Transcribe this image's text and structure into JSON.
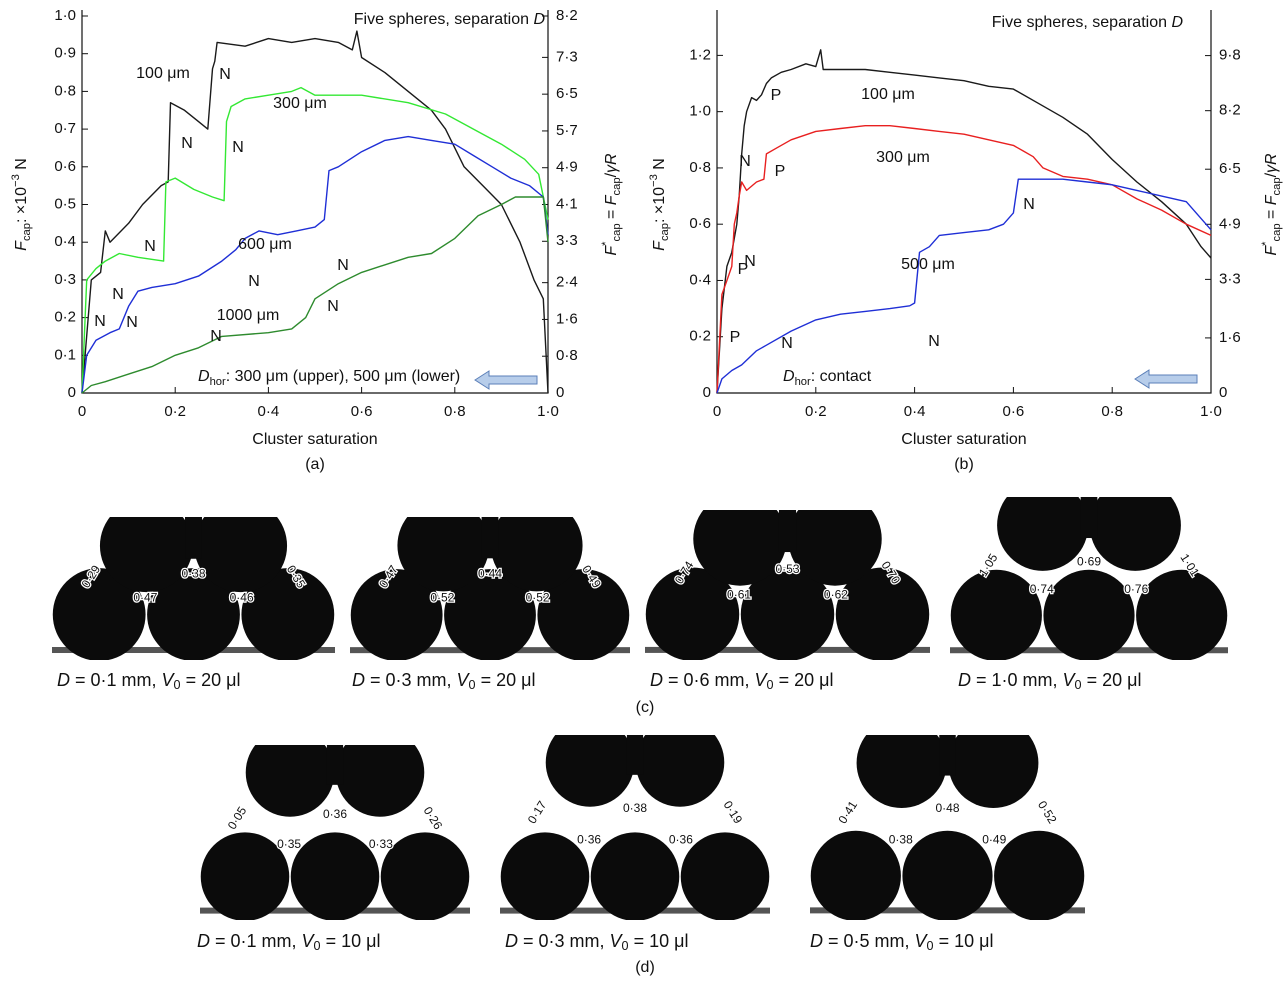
{
  "chart_data": [
    {
      "type": "line",
      "caption": "(a)",
      "xlabel": "Cluster saturation",
      "ylabel": [
        {
          "i": "F"
        },
        {
          "sub": "cap"
        },
        ": ×10",
        {
          "sup": "−3"
        },
        " N"
      ],
      "y2label": [
        {
          "i": "F"
        },
        {
          "sup": "*"
        },
        {
          "sub": "cap"
        },
        " = ",
        {
          "i": "F"
        },
        {
          "sub": "cap"
        },
        "/",
        {
          "i": "γR"
        }
      ],
      "note": [
        "Five spheres, separation ",
        {
          "i": "D"
        }
      ],
      "condition": [
        {
          "i": "D"
        },
        {
          "sub": "hor"
        },
        ": 300 μm (upper), 500 μm (lower)"
      ],
      "xlim": [
        0,
        1
      ],
      "xticks": [
        0,
        {
          "value": 0.2,
          "label": "0·2"
        },
        {
          "value": 0.4,
          "label": "0·4"
        },
        {
          "value": 0.6,
          "label": "0·6"
        },
        {
          "value": 0.8,
          "label": "0·8"
        },
        {
          "value": 1.0,
          "label": "1·0"
        }
      ],
      "ylim": [
        0,
        1
      ],
      "yticks": [
        0,
        {
          "value": 0.1,
          "label": "0·1"
        },
        {
          "value": 0.2,
          "label": "0·2"
        },
        {
          "value": 0.3,
          "label": "0·3"
        },
        {
          "value": 0.4,
          "label": "0·4"
        },
        {
          "value": 0.5,
          "label": "0·5"
        },
        {
          "value": 0.6,
          "label": "0·6"
        },
        {
          "value": 0.7,
          "label": "0·7"
        },
        {
          "value": 0.8,
          "label": "0·8"
        },
        {
          "value": 0.9,
          "label": "0·9"
        },
        {
          "value": 1.0,
          "label": "1·0"
        }
      ],
      "y2lim": [
        0,
        8.2
      ],
      "y2ticks": [
        0,
        {
          "value": 0.8,
          "label": "0·8"
        },
        {
          "value": 1.6,
          "label": "1·6"
        },
        {
          "value": 2.4,
          "label": "2·4"
        },
        {
          "value": 3.3,
          "label": "3·3"
        },
        {
          "value": 4.1,
          "label": "4·1"
        },
        {
          "value": 4.9,
          "label": "4·9"
        },
        {
          "value": 5.7,
          "label": "5·7"
        },
        {
          "value": 6.5,
          "label": "6·5"
        },
        {
          "value": 7.3,
          "label": "7·3"
        },
        {
          "value": 8.2,
          "label": "8·2"
        }
      ],
      "series": [
        {
          "name": "100 μm",
          "color": "#1a1a1a",
          "x": [
            0,
            0.02,
            0.04,
            0.05,
            0.06,
            0.1,
            0.13,
            0.17,
            0.185,
            0.19,
            0.22,
            0.25,
            0.27,
            0.28,
            0.285,
            0.29,
            0.35,
            0.4,
            0.45,
            0.5,
            0.55,
            0.58,
            0.59,
            0.6,
            0.65,
            0.7,
            0.75,
            0.78,
            0.82,
            0.86,
            0.9,
            0.94,
            0.97,
            0.99,
            1.0
          ],
          "values": [
            0,
            0.3,
            0.32,
            0.43,
            0.4,
            0.45,
            0.5,
            0.55,
            0.56,
            0.77,
            0.75,
            0.72,
            0.7,
            0.86,
            0.88,
            0.93,
            0.92,
            0.94,
            0.93,
            0.94,
            0.93,
            0.91,
            0.96,
            0.89,
            0.85,
            0.8,
            0.75,
            0.7,
            0.6,
            0.55,
            0.5,
            0.4,
            0.3,
            0.25,
            0
          ]
        },
        {
          "name": "300 μm",
          "color": "#33e833",
          "x": [
            0,
            0.01,
            0.03,
            0.05,
            0.08,
            0.12,
            0.175,
            0.18,
            0.2,
            0.24,
            0.28,
            0.305,
            0.31,
            0.32,
            0.35,
            0.4,
            0.45,
            0.47,
            0.5,
            0.6,
            0.7,
            0.78,
            0.84,
            0.9,
            0.95,
            0.98,
            1.0
          ],
          "values": [
            0,
            0.3,
            0.33,
            0.35,
            0.37,
            0.36,
            0.35,
            0.56,
            0.57,
            0.54,
            0.52,
            0.51,
            0.72,
            0.76,
            0.78,
            0.79,
            0.8,
            0.81,
            0.79,
            0.79,
            0.77,
            0.74,
            0.7,
            0.66,
            0.62,
            0.58,
            0.46
          ]
        },
        {
          "name": "600 μm",
          "color": "#1f2fd6",
          "x": [
            0,
            0.01,
            0.03,
            0.06,
            0.08,
            0.1,
            0.12,
            0.15,
            0.2,
            0.25,
            0.3,
            0.33,
            0.35,
            0.38,
            0.42,
            0.46,
            0.5,
            0.52,
            0.53,
            0.55,
            0.6,
            0.65,
            0.7,
            0.75,
            0.8,
            0.84,
            0.88,
            0.92,
            0.96,
            0.99,
            1.0
          ],
          "values": [
            0,
            0.1,
            0.14,
            0.16,
            0.17,
            0.23,
            0.27,
            0.28,
            0.29,
            0.31,
            0.35,
            0.38,
            0.41,
            0.43,
            0.42,
            0.43,
            0.44,
            0.46,
            0.59,
            0.6,
            0.64,
            0.67,
            0.68,
            0.67,
            0.66,
            0.63,
            0.6,
            0.57,
            0.55,
            0.52,
            0.42
          ]
        },
        {
          "name": "1000 μm",
          "color": "#2e8b2e",
          "x": [
            0,
            0.02,
            0.05,
            0.1,
            0.15,
            0.2,
            0.25,
            0.3,
            0.4,
            0.45,
            0.48,
            0.5,
            0.55,
            0.6,
            0.7,
            0.75,
            0.8,
            0.85,
            0.9,
            0.93,
            0.96,
            0.99,
            1.0
          ],
          "values": [
            0,
            0.02,
            0.03,
            0.05,
            0.07,
            0.1,
            0.12,
            0.15,
            0.16,
            0.17,
            0.2,
            0.25,
            0.29,
            0.32,
            0.36,
            0.37,
            0.41,
            0.47,
            0.5,
            0.52,
            0.52,
            0.52,
            0.4
          ]
        }
      ],
      "annotations": [
        {
          "text": "N",
          "color": "#1a1a1a"
        },
        {
          "text": "N",
          "color": "#1a1a1a"
        },
        {
          "text": "N",
          "color": "#1a1a1a"
        },
        {
          "text": "N",
          "color": "#33e833"
        },
        {
          "text": "N",
          "color": "#33e833"
        },
        {
          "text": "N",
          "color": "#33e833"
        },
        {
          "text": "N",
          "color": "#1f2fd6"
        },
        {
          "text": "N",
          "color": "#1f2fd6"
        },
        {
          "text": "N",
          "color": "#1f2fd6"
        },
        {
          "text": "N",
          "color": "#e82020"
        },
        {
          "text": "N",
          "color": "#e82020"
        }
      ]
    },
    {
      "type": "line",
      "caption": "(b)",
      "xlabel": "Cluster saturation",
      "ylabel": [
        {
          "i": "F"
        },
        {
          "sub": "cap"
        },
        ": ×10",
        {
          "sup": "−3"
        },
        " N"
      ],
      "y2label": [
        {
          "i": "F"
        },
        {
          "sup": "*"
        },
        {
          "sub": "cap"
        },
        " = ",
        {
          "i": "F"
        },
        {
          "sub": "cap"
        },
        "/",
        {
          "i": "γR"
        }
      ],
      "note": [
        "Five spheres, separation ",
        {
          "i": "D"
        }
      ],
      "condition": [
        {
          "i": "D"
        },
        {
          "sub": "hor"
        },
        ": contact"
      ],
      "xlim": [
        0,
        1
      ],
      "xticks": [
        0,
        {
          "value": 0.2,
          "label": "0·2"
        },
        {
          "value": 0.4,
          "label": "0·4"
        },
        {
          "value": 0.6,
          "label": "0·6"
        },
        {
          "value": 0.8,
          "label": "0·8"
        },
        {
          "value": 1.0,
          "label": "1·0"
        }
      ],
      "ylim": [
        0,
        1.34
      ],
      "yticks": [
        0,
        {
          "value": 0.2,
          "label": "0·2"
        },
        {
          "value": 0.4,
          "label": "0·4"
        },
        {
          "value": 0.6,
          "label": "0·6"
        },
        {
          "value": 0.8,
          "label": "0·8"
        },
        {
          "value": 1.0,
          "label": "1·0"
        },
        {
          "value": 1.2,
          "label": "1·2"
        }
      ],
      "y2lim": [
        0,
        10.95
      ],
      "y2ticks": [
        0,
        {
          "value": 1.6,
          "label": "1·6"
        },
        {
          "value": 3.3,
          "label": "3·3"
        },
        {
          "value": 4.9,
          "label": "4·9"
        },
        {
          "value": 6.5,
          "label": "6·5"
        },
        {
          "value": 8.2,
          "label": "8·2"
        },
        {
          "value": 9.8,
          "label": "9·8"
        }
      ],
      "series": [
        {
          "name": "100 μm",
          "color": "#1a1a1a",
          "x": [
            0,
            0.01,
            0.02,
            0.03,
            0.04,
            0.045,
            0.05,
            0.055,
            0.06,
            0.07,
            0.08,
            0.09,
            0.1,
            0.11,
            0.13,
            0.15,
            0.18,
            0.2,
            0.21,
            0.215,
            0.25,
            0.3,
            0.35,
            0.4,
            0.45,
            0.5,
            0.55,
            0.6,
            0.65,
            0.7,
            0.75,
            0.8,
            0.85,
            0.9,
            0.95,
            0.98,
            1.0
          ],
          "values": [
            0,
            0.3,
            0.45,
            0.5,
            0.6,
            0.7,
            0.85,
            0.95,
            1.0,
            1.05,
            1.04,
            1.06,
            1.1,
            1.12,
            1.14,
            1.15,
            1.17,
            1.16,
            1.22,
            1.15,
            1.15,
            1.15,
            1.14,
            1.13,
            1.12,
            1.11,
            1.09,
            1.08,
            1.03,
            0.98,
            0.92,
            0.83,
            0.75,
            0.68,
            0.6,
            0.52,
            0.48
          ]
        },
        {
          "name": "300 μm",
          "color": "#e82020",
          "x": [
            0,
            0.01,
            0.02,
            0.03,
            0.035,
            0.04,
            0.045,
            0.05,
            0.06,
            0.08,
            0.095,
            0.1,
            0.12,
            0.15,
            0.2,
            0.25,
            0.3,
            0.35,
            0.4,
            0.45,
            0.5,
            0.55,
            0.6,
            0.62,
            0.64,
            0.66,
            0.7,
            0.75,
            0.8,
            0.85,
            0.9,
            0.95,
            1.0
          ],
          "values": [
            0,
            0.35,
            0.4,
            0.45,
            0.6,
            0.64,
            0.7,
            0.75,
            0.72,
            0.75,
            0.76,
            0.85,
            0.87,
            0.9,
            0.93,
            0.94,
            0.95,
            0.95,
            0.94,
            0.93,
            0.92,
            0.9,
            0.88,
            0.86,
            0.84,
            0.8,
            0.77,
            0.76,
            0.74,
            0.69,
            0.65,
            0.6,
            0.56
          ]
        },
        {
          "name": "500 μm",
          "color": "#1f2fd6",
          "x": [
            0,
            0.01,
            0.03,
            0.05,
            0.08,
            0.1,
            0.15,
            0.2,
            0.25,
            0.3,
            0.35,
            0.39,
            0.4,
            0.41,
            0.43,
            0.45,
            0.5,
            0.55,
            0.58,
            0.6,
            0.61,
            0.65,
            0.7,
            0.75,
            0.8,
            0.85,
            0.9,
            0.95,
            0.98,
            1.0
          ],
          "values": [
            0,
            0.05,
            0.08,
            0.1,
            0.15,
            0.17,
            0.22,
            0.26,
            0.28,
            0.29,
            0.3,
            0.31,
            0.32,
            0.5,
            0.52,
            0.56,
            0.57,
            0.58,
            0.6,
            0.64,
            0.76,
            0.76,
            0.76,
            0.75,
            0.74,
            0.72,
            0.7,
            0.68,
            0.62,
            0.58
          ]
        }
      ],
      "annotations": [
        {
          "text": "P",
          "color": "#1a1a1a"
        },
        {
          "text": "N",
          "color": "#1a1a1a"
        },
        {
          "text": "P",
          "color": "#1a1a1a"
        },
        {
          "text": "P",
          "color": "#e82020"
        },
        {
          "text": "N",
          "color": "#e82020"
        },
        {
          "text": "P",
          "color": "#e82020"
        },
        {
          "text": "N",
          "color": "#1f2fd6"
        },
        {
          "text": "N",
          "color": "#1f2fd6"
        },
        {
          "text": "N",
          "color": "#1f2fd6"
        }
      ]
    }
  ],
  "photos": [
    {
      "caption": "(c)",
      "images": [
        {
          "labels": [
            "0·29",
            "0·38",
            "0·47",
            "0·46",
            "0·35"
          ],
          "caption": [
            {
              "i": "D"
            },
            " = 0·1 mm, ",
            {
              "i": "V"
            },
            {
              "sub": "0"
            },
            " = 20 μl"
          ]
        },
        {
          "labels": [
            "0·47",
            "0·44",
            "0·52",
            "0·52",
            "0·49"
          ],
          "caption": [
            {
              "i": "D"
            },
            " = 0·3 mm, ",
            {
              "i": "V"
            },
            {
              "sub": "0"
            },
            " = 20 μl"
          ]
        },
        {
          "labels": [
            "0·74",
            "0·53",
            "0·61",
            "0·62",
            "0·70"
          ],
          "caption": [
            {
              "i": "D"
            },
            " = 0·6 mm, ",
            {
              "i": "V"
            },
            {
              "sub": "0"
            },
            " = 20 μl"
          ]
        },
        {
          "labels": [
            "1·05",
            "0·69",
            "0·74",
            "0·76",
            "1·01"
          ],
          "caption": [
            {
              "i": "D"
            },
            " = 1·0 mm, ",
            {
              "i": "V"
            },
            {
              "sub": "0"
            },
            " = 20 μl"
          ]
        }
      ]
    },
    {
      "caption": "(d)",
      "images": [
        {
          "labels": [
            "0·05",
            "0·36",
            "0·35",
            "0·33",
            "0·26"
          ],
          "caption": [
            {
              "i": "D"
            },
            " = 0·1 mm, ",
            {
              "i": "V"
            },
            {
              "sub": "0"
            },
            " = 10 μl"
          ]
        },
        {
          "labels": [
            "0·17",
            "0·38",
            "0·36",
            "0·36",
            "0·19"
          ],
          "caption": [
            {
              "i": "D"
            },
            " = 0·3 mm, ",
            {
              "i": "V"
            },
            {
              "sub": "0"
            },
            " = 10 μl"
          ]
        },
        {
          "labels": [
            "0·41",
            "0·48",
            "0·38",
            "0·49",
            "0·52"
          ],
          "caption": [
            {
              "i": "D"
            },
            " = 0·5 mm, ",
            {
              "i": "V"
            },
            {
              "sub": "0"
            },
            " = 10 μl"
          ]
        }
      ]
    }
  ]
}
